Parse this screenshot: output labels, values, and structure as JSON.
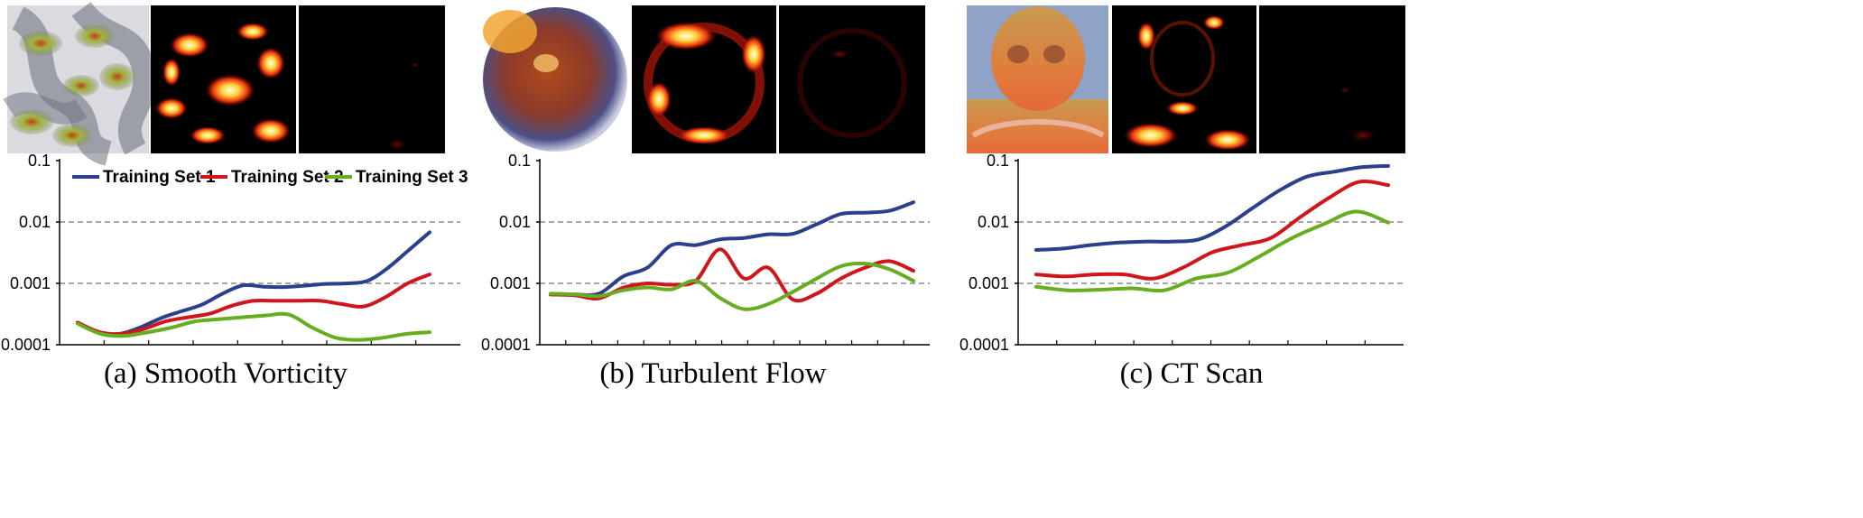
{
  "figure": {
    "y_tick_labels": [
      "0.1",
      "0.01",
      "0.001",
      "0.0001"
    ],
    "legend": [
      "Training Set 1",
      "Training Set 2",
      "Training Set 3"
    ],
    "colors": {
      "series_1": "#2b3f8c",
      "series_2": "#d0161b",
      "series_3": "#66ad1f",
      "axis": "#000000",
      "reference_line": "#8a8a8a",
      "panel_background": "#000000",
      "image_divider": "#ffffff"
    },
    "thumbnails_per_panel": [
      "volume rendering",
      "error heatmap (high)",
      "error heatmap (low)"
    ]
  },
  "panels": [
    {
      "caption": "(a) Smooth Vorticity"
    },
    {
      "caption": "(b) Turbulent Flow"
    },
    {
      "caption": "(c) CT Scan"
    }
  ],
  "chart_data": [
    {
      "type": "line",
      "title": "(a) Smooth Vorticity",
      "y_scale": "log",
      "ylim": [
        0.0001,
        0.1
      ],
      "y_ticks": [
        0.1,
        0.01,
        0.001,
        0.0001
      ],
      "reference_lines": [
        0.01,
        0.001
      ],
      "x": [
        0,
        1,
        2,
        3,
        4,
        5,
        6,
        7,
        8,
        9,
        10,
        11,
        12,
        13,
        14,
        15,
        16,
        17,
        18,
        19,
        20
      ],
      "series": [
        {
          "name": "Training Set 1",
          "values": [
            0.00023,
            0.00016,
            0.00015,
            0.00019,
            0.00027,
            0.00035,
            0.00045,
            0.00068,
            0.00093,
            0.00088,
            0.00087,
            0.00092,
            0.00098,
            0.001,
            0.0011,
            0.0018,
            0.0035,
            0.0068,
            0.0068,
            0.0068,
            0.0068
          ]
        },
        {
          "name": "Training Set 2",
          "values": [
            0.00023,
            0.00016,
            0.00015,
            0.00018,
            0.00024,
            0.00028,
            0.00032,
            0.00043,
            0.00052,
            0.00052,
            0.00052,
            0.00052,
            0.00046,
            0.00042,
            0.0006,
            0.001,
            0.0014,
            0.0014,
            0.0014,
            0.0014,
            0.0014
          ]
        },
        {
          "name": "Training Set 3",
          "values": [
            0.00022,
            0.00015,
            0.00014,
            0.00016,
            0.00019,
            0.00024,
            0.00026,
            0.00028,
            0.0003,
            0.00031,
            0.00019,
            0.00013,
            0.00012,
            0.00013,
            0.00015,
            0.00016,
            0.00016,
            0.00016,
            0.00016,
            0.00016,
            0.00016
          ]
        }
      ]
    },
    {
      "type": "line",
      "title": "(b) Turbulent Flow",
      "y_scale": "log",
      "ylim": [
        0.0001,
        0.1
      ],
      "y_ticks": [
        0.1,
        0.01,
        0.001,
        0.0001
      ],
      "reference_lines": [
        0.01,
        0.001
      ],
      "x": [
        0,
        1,
        2,
        3,
        4,
        5,
        6,
        7,
        8,
        9,
        10,
        11,
        12,
        13,
        14,
        15,
        16,
        17,
        18,
        19,
        20
      ],
      "series": [
        {
          "name": "Training Set 1",
          "values": [
            0.00066,
            0.00066,
            0.00068,
            0.0013,
            0.0018,
            0.0042,
            0.0042,
            0.0052,
            0.0055,
            0.0063,
            0.0064,
            0.0092,
            0.0135,
            0.0142,
            0.0152,
            0.021,
            0.021,
            0.021,
            0.021,
            0.021,
            0.021
          ]
        },
        {
          "name": "Training Set 2",
          "values": [
            0.00066,
            0.00064,
            0.00057,
            0.00085,
            0.001,
            0.00095,
            0.0011,
            0.0036,
            0.0012,
            0.0018,
            0.00055,
            0.00068,
            0.0012,
            0.0018,
            0.0023,
            0.0016,
            0.0016,
            0.0016,
            0.0016,
            0.0016,
            0.0016
          ]
        },
        {
          "name": "Training Set 3",
          "values": [
            0.00068,
            0.00066,
            0.00062,
            0.00077,
            0.00086,
            0.0008,
            0.0011,
            0.00058,
            0.00038,
            0.00046,
            0.00072,
            0.0012,
            0.0019,
            0.0021,
            0.0017,
            0.0011,
            0.0011,
            0.0011,
            0.0011,
            0.0011,
            0.0011
          ]
        }
      ]
    },
    {
      "type": "line",
      "title": "(c) CT Scan",
      "y_scale": "log",
      "ylim": [
        0.0001,
        0.1
      ],
      "y_ticks": [
        0.1,
        0.01,
        0.001,
        0.0001
      ],
      "reference_lines": [
        0.01,
        0.001
      ],
      "x": [
        0,
        1,
        2,
        3,
        4,
        5,
        6,
        7,
        8,
        9,
        10,
        11,
        12,
        13,
        14,
        15,
        16,
        17,
        18,
        19,
        20
      ],
      "series": [
        {
          "name": "Training Set 1",
          "values": [
            0.0035,
            0.0037,
            0.0042,
            0.0046,
            0.0048,
            0.0048,
            0.0052,
            0.0085,
            0.017,
            0.033,
            0.055,
            0.066,
            0.078,
            0.082,
            0.082,
            0.082,
            0.082,
            0.082,
            0.082,
            0.082,
            0.082
          ]
        },
        {
          "name": "Training Set 2",
          "values": [
            0.0014,
            0.0013,
            0.0014,
            0.0014,
            0.0012,
            0.0018,
            0.0032,
            0.0042,
            0.0055,
            0.012,
            0.025,
            0.045,
            0.04,
            0.04,
            0.04,
            0.04,
            0.04,
            0.04,
            0.04,
            0.04,
            0.04
          ]
        },
        {
          "name": "Training Set 3",
          "values": [
            0.00088,
            0.00077,
            0.00079,
            0.00083,
            0.00077,
            0.0012,
            0.0015,
            0.0028,
            0.0055,
            0.0093,
            0.0148,
            0.0098,
            0.0098,
            0.0098,
            0.0098,
            0.0098,
            0.0098,
            0.0098,
            0.0098,
            0.0098,
            0.0098
          ]
        }
      ]
    }
  ]
}
